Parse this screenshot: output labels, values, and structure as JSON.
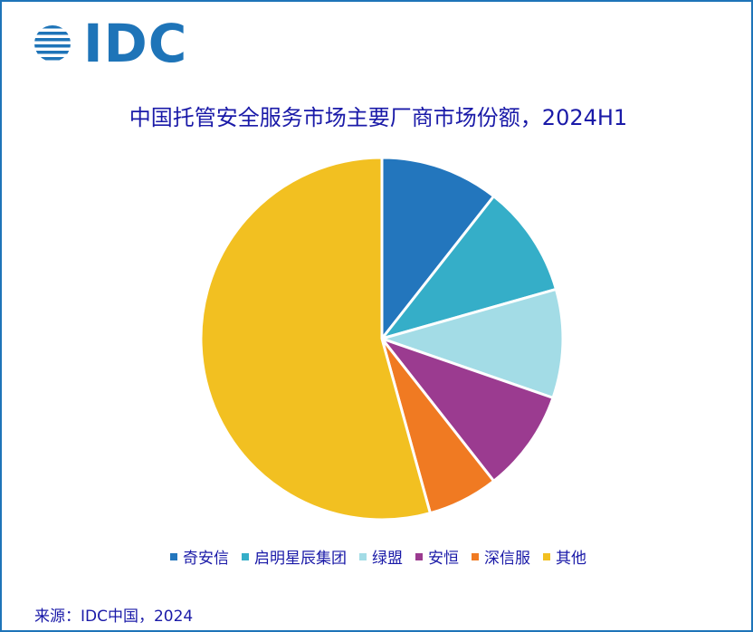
{
  "logo": {
    "text": "IDC",
    "color": "#1e74b8"
  },
  "chart_data": {
    "type": "pie",
    "title": "中国托管安全服务市场主要厂商市场份额，2024H1",
    "categories": [
      "奇安信",
      "启明星辰集团",
      "绿盟",
      "安恒",
      "深信服",
      "其他"
    ],
    "values": [
      10.6,
      10.0,
      9.7,
      9.1,
      6.3,
      54.3
    ],
    "colors": [
      "#2376bd",
      "#35aec8",
      "#a3dce6",
      "#9b3b90",
      "#f07a22",
      "#f2c021"
    ],
    "legend_position": "bottom"
  },
  "source": "来源：IDC中国，2024"
}
